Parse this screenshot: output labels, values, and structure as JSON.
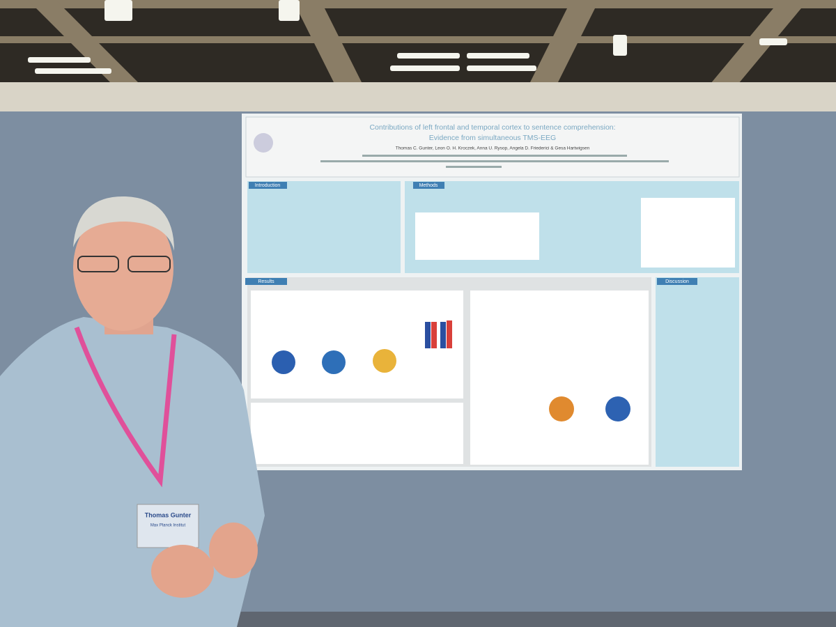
{
  "poster": {
    "title": "Contributions of left frontal and temporal cortex to sentence comprehension:",
    "subtitle": "Evidence from simultaneous TMS-EEG",
    "authors": "Thomas C. Gunter, Leon O. H. Kroczek, Anna U. Rysop, Angela D. Friederici & Gesa Hartwigsen",
    "sections": {
      "introduction": "Introduction",
      "methods": "Methods",
      "results": "Results",
      "discussion": "Discussion"
    }
  },
  "badge": {
    "name": "Thomas Gunter",
    "org": "Max Planck Institut"
  }
}
